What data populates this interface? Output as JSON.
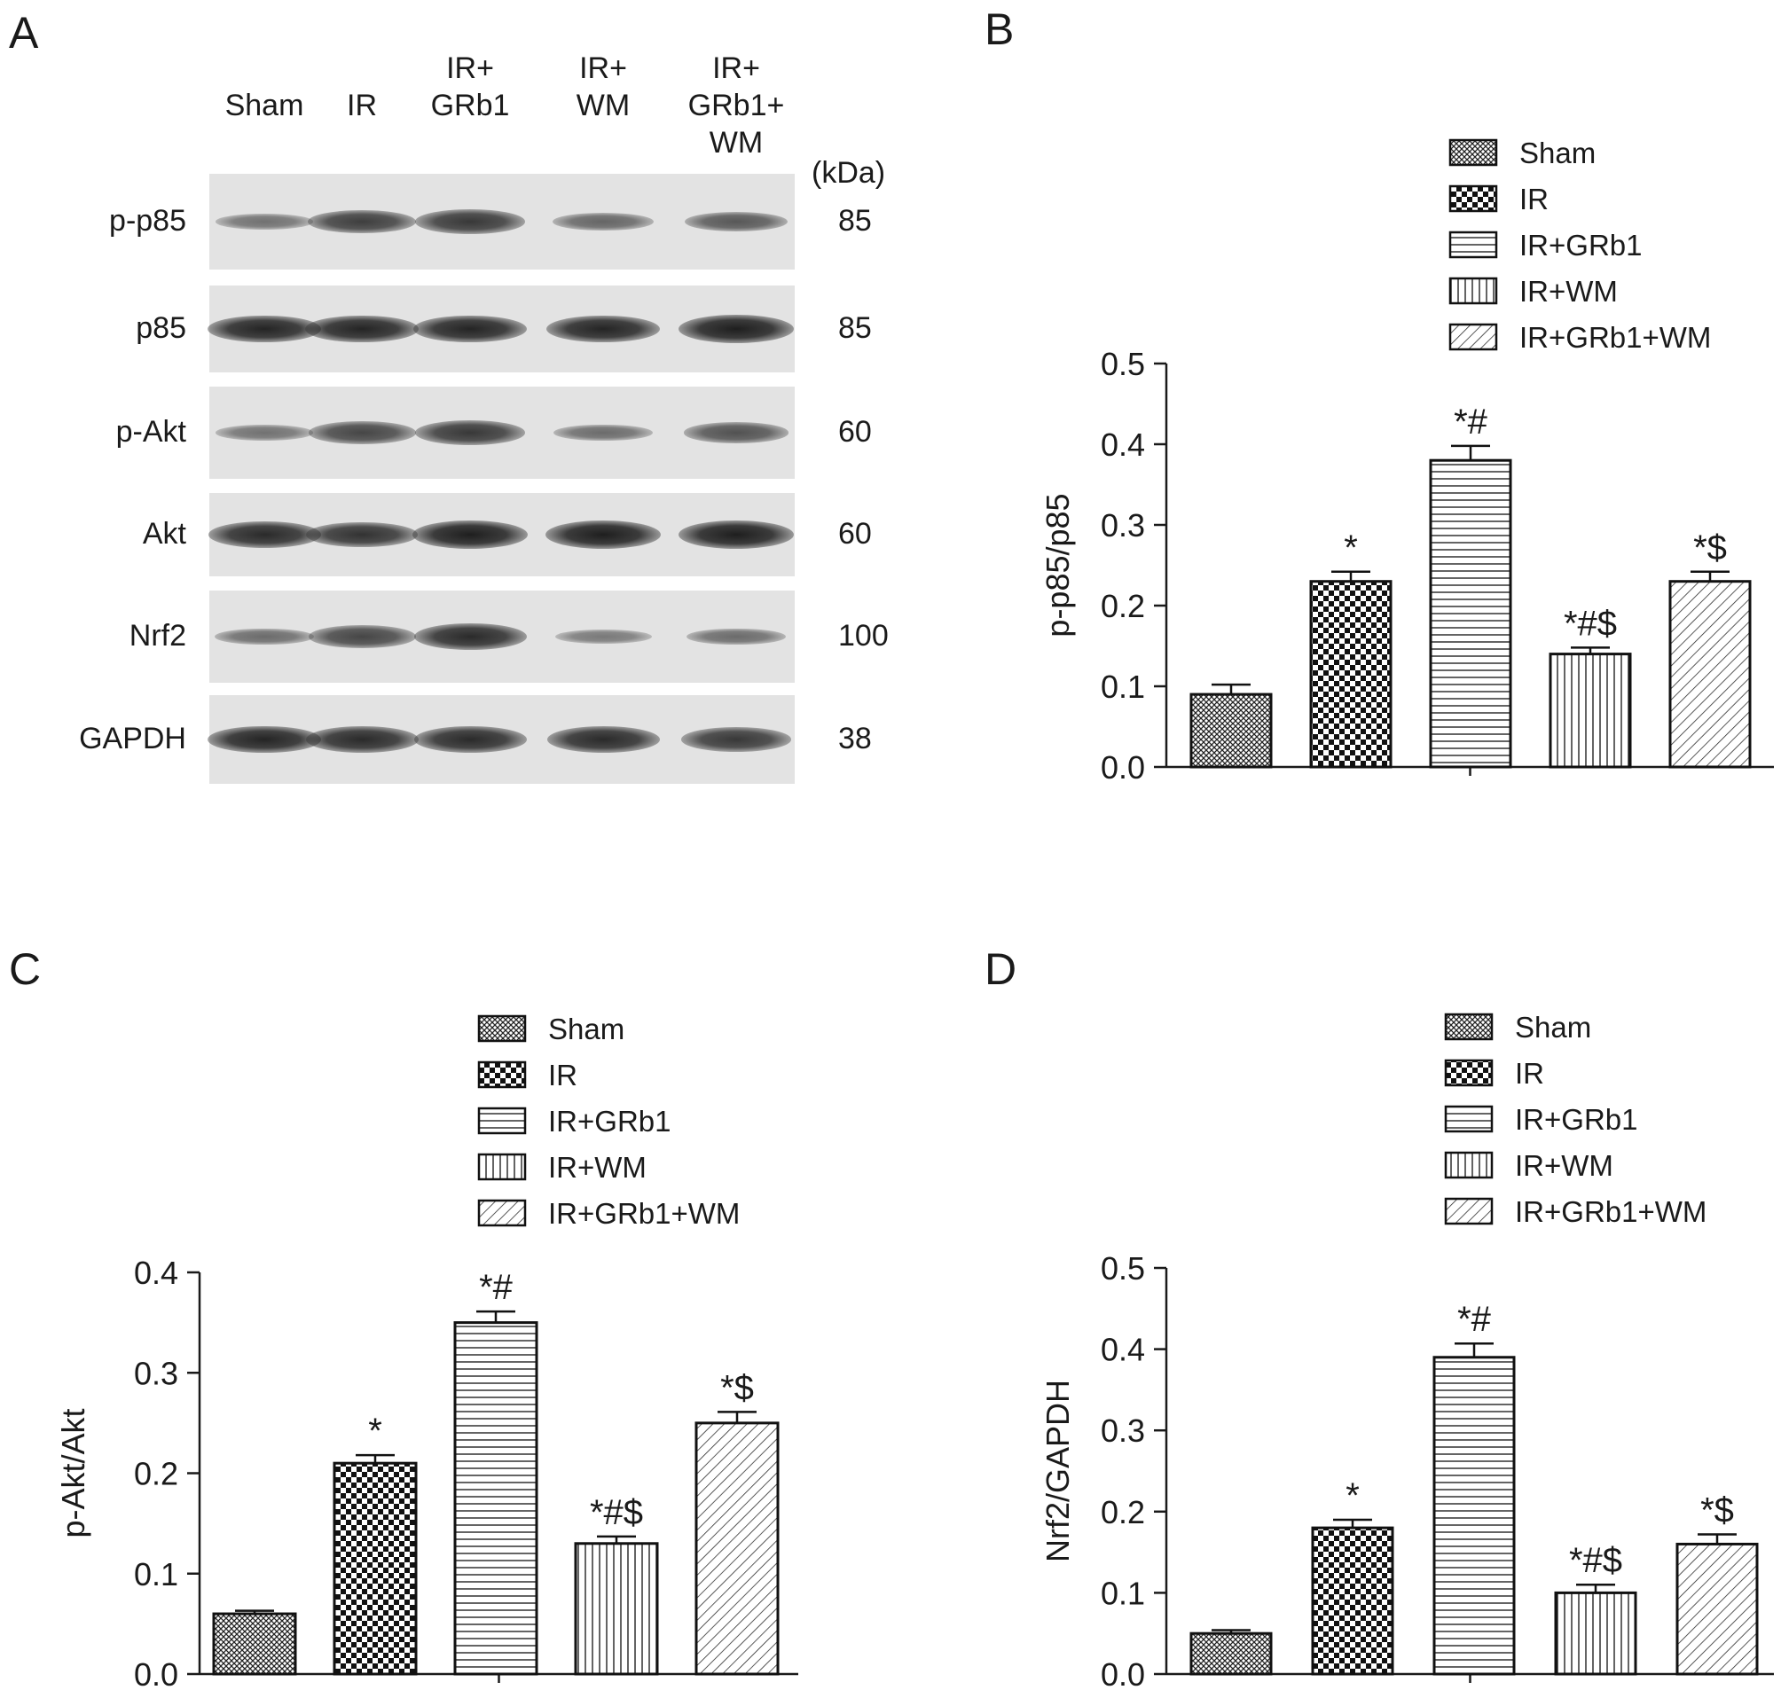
{
  "blot": {
    "letter": "A",
    "lanes": [
      [
        "Sham"
      ],
      [
        "IR"
      ],
      [
        "IR+",
        "GRb1"
      ],
      [
        "IR+",
        "WM"
      ],
      [
        "IR+",
        "GRb1+",
        "WM"
      ]
    ],
    "kda_header": "(kDa)",
    "rows": [
      {
        "label": "p-p85",
        "mw": "85",
        "intensity": [
          0.35,
          0.75,
          0.8,
          0.45,
          0.55
        ]
      },
      {
        "label": "p85",
        "mw": "85",
        "intensity": [
          0.95,
          0.95,
          0.95,
          0.95,
          1.0
        ]
      },
      {
        "label": "p-Akt",
        "mw": "60",
        "intensity": [
          0.35,
          0.7,
          0.8,
          0.4,
          0.6
        ]
      },
      {
        "label": "Akt",
        "mw": "60",
        "intensity": [
          0.9,
          0.85,
          1.0,
          1.0,
          1.0
        ]
      },
      {
        "label": "Nrf2",
        "mw": "100",
        "intensity": [
          0.4,
          0.7,
          0.9,
          0.3,
          0.4
        ]
      },
      {
        "label": "GAPDH",
        "mw": "38",
        "intensity": [
          0.95,
          0.9,
          0.9,
          0.9,
          0.8
        ]
      }
    ]
  },
  "chart_data": [
    {
      "panel": "B",
      "type": "bar",
      "categories": [
        "Sham",
        "IR",
        "IR+GRb1",
        "IR+WM",
        "IR+GRb1+WM"
      ],
      "values": [
        0.09,
        0.23,
        0.38,
        0.14,
        0.23
      ],
      "errors": [
        0.012,
        0.012,
        0.018,
        0.008,
        0.012
      ],
      "annotations": [
        "",
        "*",
        "*#",
        "*#$",
        "*$"
      ],
      "ylabel": "p-p85/p85",
      "ylim": [
        0,
        0.5
      ],
      "yticks": [
        "0.0",
        "0.1",
        "0.2",
        "0.3",
        "0.4",
        "0.5"
      ],
      "legend": [
        "Sham",
        "IR",
        "IR+GRb1",
        "IR+WM",
        "IR+GRb1+WM"
      ],
      "legend_position": "top-right"
    },
    {
      "panel": "C",
      "type": "bar",
      "categories": [
        "Sham",
        "IR",
        "IR+GRb1",
        "IR+WM",
        "IR+GRb1+WM"
      ],
      "values": [
        0.06,
        0.21,
        0.35,
        0.13,
        0.25
      ],
      "errors": [
        0.003,
        0.008,
        0.011,
        0.007,
        0.011
      ],
      "annotations": [
        "",
        "*",
        "*#",
        "*#$",
        "*$"
      ],
      "ylabel": "p-Akt/Akt",
      "ylim": [
        0,
        0.4
      ],
      "yticks": [
        "0.0",
        "0.1",
        "0.2",
        "0.3",
        "0.4"
      ],
      "legend": [
        "Sham",
        "IR",
        "IR+GRb1",
        "IR+WM",
        "IR+GRb1+WM"
      ],
      "legend_position": "top-right"
    },
    {
      "panel": "D",
      "type": "bar",
      "categories": [
        "Sham",
        "IR",
        "IR+GRb1",
        "IR+WM",
        "IR+GRb1+WM"
      ],
      "values": [
        0.05,
        0.18,
        0.39,
        0.1,
        0.16
      ],
      "errors": [
        0.004,
        0.01,
        0.017,
        0.01,
        0.012
      ],
      "annotations": [
        "",
        "*",
        "*#",
        "*#$",
        "*$"
      ],
      "ylabel": "Nrf2/GAPDH",
      "ylim": [
        0,
        0.5
      ],
      "yticks": [
        "0.0",
        "0.1",
        "0.2",
        "0.3",
        "0.4",
        "0.5"
      ],
      "legend": [
        "Sham",
        "IR",
        "IR+GRb1",
        "IR+WM",
        "IR+GRb1+WM"
      ],
      "legend_position": "top-right"
    }
  ]
}
